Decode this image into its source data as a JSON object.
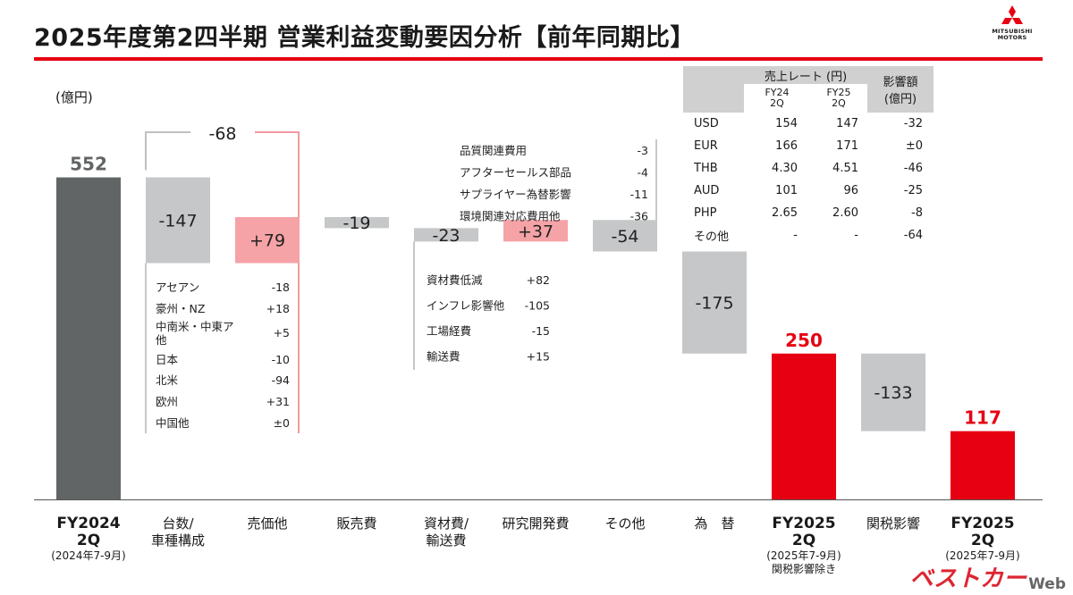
{
  "header": {
    "title": "2025年度第2四半期 営業利益変動要因分析【前年同期比】",
    "logo_text_1": "MITSUBISHI",
    "logo_text_2": "MOTORS"
  },
  "unit": "(億円)",
  "chart_data": {
    "type": "waterfall",
    "title": "2025年度第2四半期 営業利益変動要因分析【前年同期比】",
    "ylabel": "(億円)",
    "categories": [
      "FY2024 2Q",
      "台数/車種構成",
      "売価他",
      "販売費",
      "資材費/輸送費",
      "研究開発費",
      "その他",
      "為 替",
      "FY2025 2Q",
      "関税影響",
      "FY2025 2Q"
    ],
    "steps": [
      {
        "category": "FY2024 2Q",
        "kind": "total",
        "value": 552,
        "label": "552"
      },
      {
        "category": "台数/車種構成",
        "kind": "delta",
        "value": -147,
        "label": "-147"
      },
      {
        "category": "売価他",
        "kind": "delta",
        "value": 79,
        "label": "+79"
      },
      {
        "category": "販売費",
        "kind": "delta",
        "value": -19,
        "label": "-19"
      },
      {
        "category": "資材費/輸送費",
        "kind": "delta",
        "value": -23,
        "label": "-23"
      },
      {
        "category": "研究開発費",
        "kind": "delta",
        "value": 37,
        "label": "+37"
      },
      {
        "category": "その他",
        "kind": "delta",
        "value": -54,
        "label": "-54"
      },
      {
        "category": "為 替",
        "kind": "delta",
        "value": -175,
        "label": "-175"
      },
      {
        "category": "FY2025 2Q",
        "kind": "total",
        "value": 250,
        "label": "250"
      },
      {
        "category": "関税影響",
        "kind": "delta",
        "value": -133,
        "label": "-133"
      },
      {
        "category": "FY2025 2Q",
        "kind": "total",
        "value": 117,
        "label": "117"
      }
    ],
    "bracket_total": "-68",
    "breakdowns": {
      "volume": [
        {
          "label": "アセアン",
          "value": "-18"
        },
        {
          "label": "豪州・NZ",
          "value": "+18"
        },
        {
          "label": "中南米・中東ア",
          "label2": "他",
          "value": "+5"
        },
        {
          "label": "日本",
          "value": "-10"
        },
        {
          "label": "北米",
          "value": "-94"
        },
        {
          "label": "欧州",
          "value": "+31"
        },
        {
          "label": "中国他",
          "value": "±0"
        }
      ],
      "materials": [
        {
          "label": "資材費低減",
          "value": "+82"
        },
        {
          "label": "インフレ影響他",
          "value": "-105"
        },
        {
          "label": "工場経費",
          "value": "-15"
        },
        {
          "label": "輸送費",
          "value": "+15"
        }
      ],
      "other": [
        {
          "label": "品質関連費用",
          "value": "-3"
        },
        {
          "label": "アフターセールス部品",
          "value": "-4"
        },
        {
          "label": "サプライヤー為替影響",
          "value": "-11"
        },
        {
          "label": "環境関連対応費用他",
          "value": "-36"
        }
      ]
    },
    "fx_table": {
      "header_rate": "売上レート (円)",
      "header_impact": "影響額",
      "header_impact_unit": "(億円)",
      "col_fy24": [
        "FY24",
        "2Q"
      ],
      "col_fy25": [
        "FY25",
        "2Q"
      ],
      "rows": [
        {
          "currency": "USD",
          "fy24": "154",
          "fy25": "147",
          "impact": "-32"
        },
        {
          "currency": "EUR",
          "fy24": "166",
          "fy25": "171",
          "impact": "±0"
        },
        {
          "currency": "THB",
          "fy24": "4.30",
          "fy25": "4.51",
          "impact": "-46"
        },
        {
          "currency": "AUD",
          "fy24": "101",
          "fy25": "96",
          "impact": "-25"
        },
        {
          "currency": "PHP",
          "fy24": "2.65",
          "fy25": "2.60",
          "impact": "-8"
        },
        {
          "currency": "その他",
          "fy24": "-",
          "fy25": "-",
          "impact": "-64"
        }
      ]
    },
    "axis_labels": [
      {
        "lines": [
          "FY2024",
          "2Q"
        ],
        "sub": [
          "(2024年7-9月)"
        ],
        "bold": true
      },
      {
        "lines": [
          "台数/",
          "車種構成"
        ],
        "sub": [],
        "bold": false
      },
      {
        "lines": [
          "売価他"
        ],
        "sub": [],
        "bold": false
      },
      {
        "lines": [
          "販売費"
        ],
        "sub": [],
        "bold": false
      },
      {
        "lines": [
          "資材費/",
          "輸送費"
        ],
        "sub": [],
        "bold": false
      },
      {
        "lines": [
          "研究開発費"
        ],
        "sub": [],
        "bold": false
      },
      {
        "lines": [
          "その他"
        ],
        "sub": [],
        "bold": false
      },
      {
        "lines": [
          "為　替"
        ],
        "sub": [],
        "bold": false
      },
      {
        "lines": [
          "FY2025",
          "2Q"
        ],
        "sub": [
          "(2025年7-9月)",
          "関税影響除き"
        ],
        "bold": true
      },
      {
        "lines": [
          "関税影響"
        ],
        "sub": [],
        "bold": false
      },
      {
        "lines": [
          "FY2025",
          "2Q"
        ],
        "sub": [
          "(2025年7-9月)"
        ],
        "bold": true
      }
    ],
    "colors": {
      "base_total": "#626566",
      "highlight_total": "#e60012",
      "negative": "#c6c7c8",
      "positive": "#f5a3a7",
      "bracket_positive": "#f29aa0",
      "bracket_negative": "#c0c0c0"
    }
  },
  "watermark": {
    "brand": "ベストカー",
    "suffix": "Web"
  }
}
